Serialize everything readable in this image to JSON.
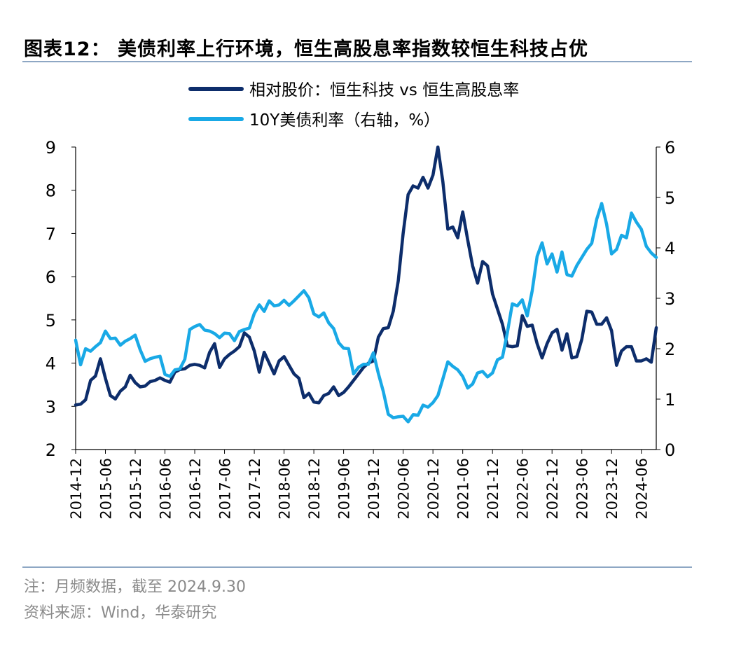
{
  "page": {
    "title": "图表12： 美债利率上行环境，恒生高股息率指数较恒生科技占优",
    "note": "注：月频数据，截至 2024.9.30",
    "source": "资料来源：Wind，华泰研究"
  },
  "chart_data": {
    "type": "line",
    "title": "",
    "left_axis": {
      "min": 2,
      "max": 9,
      "ticks": [
        "2",
        "3",
        "4",
        "5",
        "6",
        "7",
        "8",
        "9"
      ]
    },
    "right_axis": {
      "min": 0,
      "max": 6,
      "ticks": [
        "0",
        "1",
        "2",
        "3",
        "4",
        "5",
        "6"
      ],
      "label": ""
    },
    "x_tick_labels": [
      "2014-12",
      "2015-06",
      "2015-12",
      "2016-06",
      "2016-12",
      "2017-06",
      "2017-12",
      "2018-06",
      "2018-12",
      "2019-06",
      "2019-12",
      "2020-06",
      "2020-12",
      "2021-06",
      "2021-12",
      "2022-06",
      "2022-12",
      "2023-06",
      "2023-12",
      "2024-06"
    ],
    "x_start": "2014-12",
    "legend_position": "top",
    "series": [
      {
        "name": "相对股价：恒生科技 vs 恒生高股息率",
        "axis": "left",
        "color": "#0d2d6b",
        "values": [
          3.03,
          3.05,
          3.15,
          3.6,
          3.7,
          4.1,
          3.65,
          3.25,
          3.17,
          3.35,
          3.45,
          3.72,
          3.55,
          3.45,
          3.47,
          3.57,
          3.6,
          3.66,
          3.6,
          3.56,
          3.79,
          3.85,
          3.87,
          3.95,
          3.97,
          3.95,
          3.89,
          4.25,
          4.45,
          3.9,
          4.1,
          4.2,
          4.28,
          4.38,
          4.7,
          4.6,
          4.28,
          3.79,
          4.25,
          4.0,
          3.75,
          4.05,
          4.15,
          3.95,
          3.75,
          3.65,
          3.2,
          3.3,
          3.1,
          3.08,
          3.25,
          3.3,
          3.45,
          3.25,
          3.32,
          3.45,
          3.6,
          3.75,
          3.9,
          4.0,
          4.05,
          4.6,
          4.8,
          4.82,
          5.2,
          5.9,
          7.0,
          7.9,
          8.1,
          8.05,
          8.3,
          8.05,
          8.35,
          9.0,
          8.2,
          7.1,
          7.15,
          6.9,
          7.5,
          6.85,
          6.25,
          5.85,
          6.35,
          6.25,
          5.6,
          5.25,
          4.9,
          4.4,
          4.38,
          4.4,
          5.1,
          4.85,
          4.88,
          4.45,
          4.12,
          4.45,
          4.7,
          4.78,
          4.3,
          4.68,
          4.12,
          4.15,
          4.55,
          5.2,
          5.18,
          4.9,
          4.9,
          5.05,
          4.75,
          3.95,
          4.28,
          4.38,
          4.38,
          4.05,
          4.05,
          4.1,
          4.02,
          4.82
        ]
      },
      {
        "name": "10Y美债利率（右轴，%）",
        "axis": "right",
        "color": "#19a9e6",
        "values": [
          2.17,
          1.68,
          2.0,
          1.95,
          2.04,
          2.12,
          2.35,
          2.2,
          2.21,
          2.07,
          2.15,
          2.2,
          2.27,
          1.98,
          1.75,
          1.8,
          1.83,
          1.85,
          1.49,
          1.45,
          1.58,
          1.6,
          1.79,
          2.38,
          2.44,
          2.48,
          2.37,
          2.35,
          2.3,
          2.22,
          2.31,
          2.3,
          2.16,
          2.34,
          2.38,
          2.41,
          2.7,
          2.87,
          2.74,
          2.95,
          2.85,
          2.87,
          2.96,
          2.86,
          2.95,
          3.05,
          3.15,
          3.01,
          2.69,
          2.63,
          2.71,
          2.51,
          2.4,
          2.12,
          2.01,
          2.0,
          1.5,
          1.63,
          1.69,
          1.69,
          1.92,
          1.51,
          1.15,
          0.7,
          0.63,
          0.65,
          0.66,
          0.55,
          0.69,
          0.68,
          0.88,
          0.84,
          0.93,
          1.07,
          1.4,
          1.74,
          1.65,
          1.58,
          1.45,
          1.22,
          1.3,
          1.52,
          1.55,
          1.44,
          1.52,
          1.78,
          1.83,
          2.32,
          2.89,
          2.85,
          2.97,
          2.65,
          3.15,
          3.83,
          4.1,
          3.68,
          3.88,
          3.52,
          3.92,
          3.47,
          3.44,
          3.65,
          3.81,
          3.97,
          4.09,
          4.57,
          4.88,
          4.47,
          3.88,
          3.97,
          4.25,
          4.2,
          4.69,
          4.51,
          4.37,
          4.03,
          3.9,
          3.81
        ]
      }
    ]
  }
}
